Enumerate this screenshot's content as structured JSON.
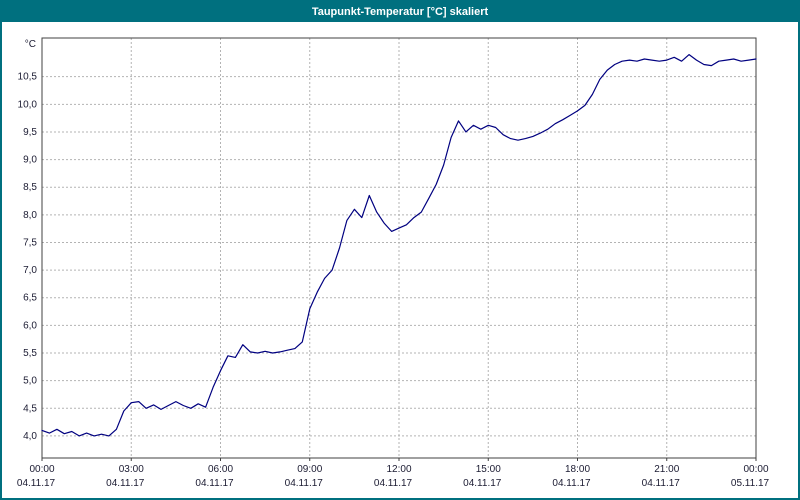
{
  "window": {
    "title": "Taupunkt-Temperatur [°C] skaliert"
  },
  "colors": {
    "titlebar_bg": "#00707f",
    "frame_border": "#00707f",
    "line": "#000080",
    "grid": "#b3b3b3",
    "axis": "#404040",
    "label": "#1b1b32",
    "title_text": "#ffffff",
    "plot_bg": "#ffffff"
  },
  "chart_data": {
    "type": "line",
    "title": "Taupunkt-Temperatur [°C] skaliert",
    "unit_label": "°C",
    "grid": true,
    "ylim": [
      3.6,
      11.2
    ],
    "x_range_hours": [
      0,
      24
    ],
    "y_ticks": [
      {
        "value": 4.0,
        "label": "4,0"
      },
      {
        "value": 4.5,
        "label": "4,5"
      },
      {
        "value": 5.0,
        "label": "5,0"
      },
      {
        "value": 5.5,
        "label": "5,5"
      },
      {
        "value": 6.0,
        "label": "6,0"
      },
      {
        "value": 6.5,
        "label": "6,5"
      },
      {
        "value": 7.0,
        "label": "7,0"
      },
      {
        "value": 7.5,
        "label": "7,5"
      },
      {
        "value": 8.0,
        "label": "8,0"
      },
      {
        "value": 8.5,
        "label": "8,5"
      },
      {
        "value": 9.0,
        "label": "9,0"
      },
      {
        "value": 9.5,
        "label": "9,5"
      },
      {
        "value": 10.0,
        "label": "10,0"
      },
      {
        "value": 10.5,
        "label": "10,5"
      }
    ],
    "x_ticks": [
      {
        "hour": 0,
        "time": "00:00",
        "date": "04.11.17"
      },
      {
        "hour": 3,
        "time": "03:00",
        "date": "04.11.17"
      },
      {
        "hour": 6,
        "time": "06:00",
        "date": "04.11.17"
      },
      {
        "hour": 9,
        "time": "09:00",
        "date": "04.11.17"
      },
      {
        "hour": 12,
        "time": "12:00",
        "date": "04.11.17"
      },
      {
        "hour": 15,
        "time": "15:00",
        "date": "04.11.17"
      },
      {
        "hour": 18,
        "time": "18:00",
        "date": "04.11.17"
      },
      {
        "hour": 21,
        "time": "21:00",
        "date": "04.11.17"
      },
      {
        "hour": 24,
        "time": "00:00",
        "date": "05.11.17"
      }
    ],
    "series": [
      {
        "color": "#000080",
        "points": [
          [
            0,
            4.1
          ],
          [
            0.25,
            4.05
          ],
          [
            0.5,
            4.12
          ],
          [
            0.75,
            4.04
          ],
          [
            1,
            4.08
          ],
          [
            1.25,
            4.0
          ],
          [
            1.5,
            4.05
          ],
          [
            1.75,
            4.0
          ],
          [
            2,
            4.03
          ],
          [
            2.25,
            4.0
          ],
          [
            2.5,
            4.12
          ],
          [
            2.75,
            4.45
          ],
          [
            3,
            4.6
          ],
          [
            3.25,
            4.62
          ],
          [
            3.5,
            4.5
          ],
          [
            3.75,
            4.56
          ],
          [
            4,
            4.48
          ],
          [
            4.25,
            4.55
          ],
          [
            4.5,
            4.62
          ],
          [
            4.75,
            4.55
          ],
          [
            5,
            4.5
          ],
          [
            5.25,
            4.58
          ],
          [
            5.5,
            4.52
          ],
          [
            5.75,
            4.88
          ],
          [
            6,
            5.18
          ],
          [
            6.25,
            5.45
          ],
          [
            6.5,
            5.42
          ],
          [
            6.75,
            5.65
          ],
          [
            7,
            5.52
          ],
          [
            7.25,
            5.5
          ],
          [
            7.5,
            5.53
          ],
          [
            7.75,
            5.5
          ],
          [
            8,
            5.52
          ],
          [
            8.25,
            5.55
          ],
          [
            8.5,
            5.58
          ],
          [
            8.75,
            5.7
          ],
          [
            9,
            6.3
          ],
          [
            9.25,
            6.6
          ],
          [
            9.5,
            6.85
          ],
          [
            9.75,
            7.0
          ],
          [
            10,
            7.4
          ],
          [
            10.25,
            7.9
          ],
          [
            10.5,
            8.1
          ],
          [
            10.75,
            7.95
          ],
          [
            11,
            8.35
          ],
          [
            11.25,
            8.05
          ],
          [
            11.5,
            7.85
          ],
          [
            11.75,
            7.7
          ],
          [
            12,
            7.76
          ],
          [
            12.25,
            7.82
          ],
          [
            12.5,
            7.95
          ],
          [
            12.75,
            8.05
          ],
          [
            13,
            8.3
          ],
          [
            13.25,
            8.55
          ],
          [
            13.5,
            8.9
          ],
          [
            13.75,
            9.4
          ],
          [
            14,
            9.7
          ],
          [
            14.25,
            9.5
          ],
          [
            14.5,
            9.62
          ],
          [
            14.75,
            9.55
          ],
          [
            15,
            9.62
          ],
          [
            15.25,
            9.58
          ],
          [
            15.5,
            9.45
          ],
          [
            15.75,
            9.38
          ],
          [
            16,
            9.35
          ],
          [
            16.25,
            9.38
          ],
          [
            16.5,
            9.42
          ],
          [
            16.75,
            9.48
          ],
          [
            17,
            9.55
          ],
          [
            17.25,
            9.65
          ],
          [
            17.5,
            9.72
          ],
          [
            17.75,
            9.8
          ],
          [
            18,
            9.88
          ],
          [
            18.25,
            9.98
          ],
          [
            18.5,
            10.18
          ],
          [
            18.75,
            10.45
          ],
          [
            19,
            10.62
          ],
          [
            19.25,
            10.72
          ],
          [
            19.5,
            10.78
          ],
          [
            19.75,
            10.8
          ],
          [
            20,
            10.78
          ],
          [
            20.25,
            10.82
          ],
          [
            20.5,
            10.8
          ],
          [
            20.75,
            10.78
          ],
          [
            21,
            10.8
          ],
          [
            21.25,
            10.85
          ],
          [
            21.5,
            10.78
          ],
          [
            21.75,
            10.9
          ],
          [
            22,
            10.8
          ],
          [
            22.25,
            10.72
          ],
          [
            22.5,
            10.7
          ],
          [
            22.75,
            10.78
          ],
          [
            23,
            10.8
          ],
          [
            23.25,
            10.82
          ],
          [
            23.5,
            10.78
          ],
          [
            23.75,
            10.8
          ],
          [
            24,
            10.82
          ]
        ]
      }
    ]
  }
}
